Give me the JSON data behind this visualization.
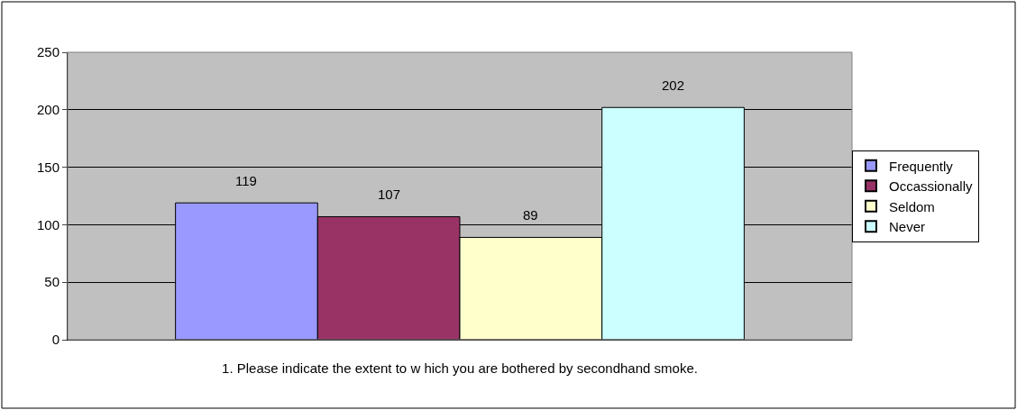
{
  "chart_data": {
    "type": "bar",
    "categories": [
      "1. Please indicate the extent to w hich you are bothered by secondhand smoke."
    ],
    "series": [
      {
        "name": "Frequently",
        "color": "#9999ff",
        "values": [
          119
        ]
      },
      {
        "name": "Occassionally",
        "color": "#993366",
        "values": [
          107
        ]
      },
      {
        "name": "Seldom",
        "color": "#ffffcc",
        "values": [
          89
        ]
      },
      {
        "name": "Never",
        "color": "#ccffff",
        "values": [
          202
        ]
      }
    ],
    "ylim": [
      0,
      250
    ],
    "yticks": [
      0,
      50,
      100,
      150,
      200,
      250
    ],
    "grid": "y",
    "legend": "right",
    "data_labels": true
  }
}
